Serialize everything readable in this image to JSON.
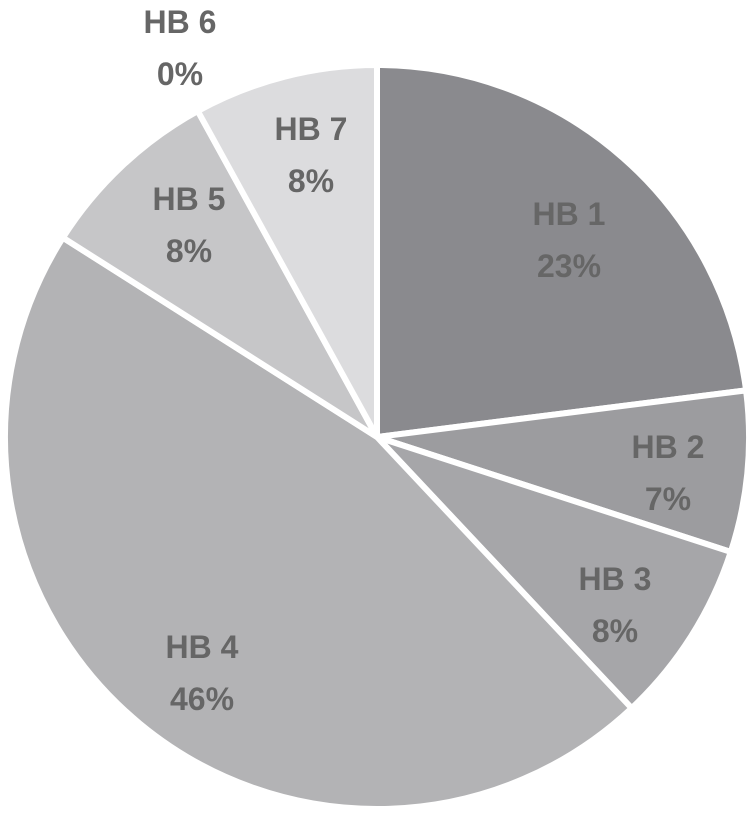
{
  "chart_data": {
    "type": "pie",
    "title": "",
    "start": "12 o'clock",
    "direction": "clockwise",
    "slices": [
      {
        "name": "HB 1",
        "value": 23,
        "label": "23%",
        "color": "#8a8a8e"
      },
      {
        "name": "HB 2",
        "value": 7,
        "label": "7%",
        "color": "#9c9c9f"
      },
      {
        "name": "HB 3",
        "value": 8,
        "label": "8%",
        "color": "#a6a6a9"
      },
      {
        "name": "HB 4",
        "value": 46,
        "label": "46%",
        "color": "#b3b3b5"
      },
      {
        "name": "HB 5",
        "value": 8,
        "label": "8%",
        "color": "#c6c6c8"
      },
      {
        "name": "HB 6",
        "value": 0,
        "label": "0%",
        "color": "#d0d0d2"
      },
      {
        "name": "HB 7",
        "value": 8,
        "label": "8%",
        "color": "#dcdcde"
      }
    ],
    "label_color": "#666666",
    "separator_color": "#ffffff"
  }
}
